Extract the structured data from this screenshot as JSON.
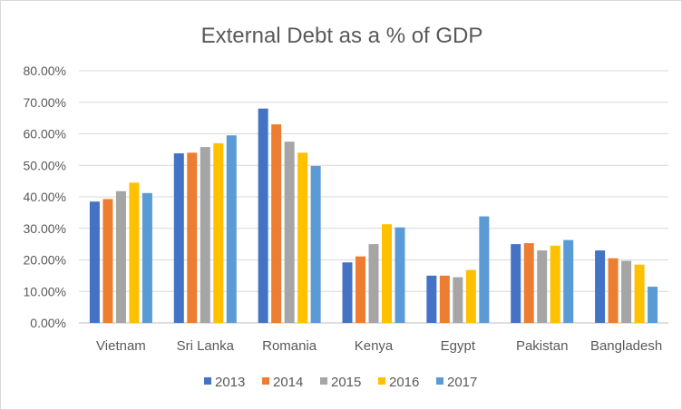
{
  "chart_data": {
    "type": "bar",
    "title": "External Debt as a % of GDP",
    "xlabel": "",
    "ylabel": "",
    "ylim": [
      0,
      80
    ],
    "yticks": [
      "0.00%",
      "10.00%",
      "20.00%",
      "30.00%",
      "40.00%",
      "50.00%",
      "60.00%",
      "70.00%",
      "80.00%"
    ],
    "grid": true,
    "legend_position": "bottom",
    "categories": [
      "Vietnam",
      "Sri Lanka",
      "Romania",
      "Kenya",
      "Egypt",
      "Pakistan",
      "Bangladesh"
    ],
    "series": [
      {
        "name": "2013",
        "color": "#4472c4",
        "values": [
          38.5,
          53.8,
          68.0,
          19.2,
          15.0,
          25.0,
          23.0
        ]
      },
      {
        "name": "2014",
        "color": "#ed7d31",
        "values": [
          39.3,
          54.0,
          63.0,
          21.1,
          15.0,
          25.3,
          20.5
        ]
      },
      {
        "name": "2015",
        "color": "#a5a5a5",
        "values": [
          41.8,
          55.8,
          57.5,
          25.0,
          14.5,
          23.0,
          19.7
        ]
      },
      {
        "name": "2016",
        "color": "#ffc000",
        "values": [
          44.5,
          57.0,
          54.0,
          31.3,
          16.8,
          24.5,
          18.5
        ]
      },
      {
        "name": "2017",
        "color": "#5b9bd5",
        "values": [
          41.2,
          59.5,
          49.8,
          30.3,
          33.8,
          26.3,
          11.5
        ]
      }
    ]
  }
}
